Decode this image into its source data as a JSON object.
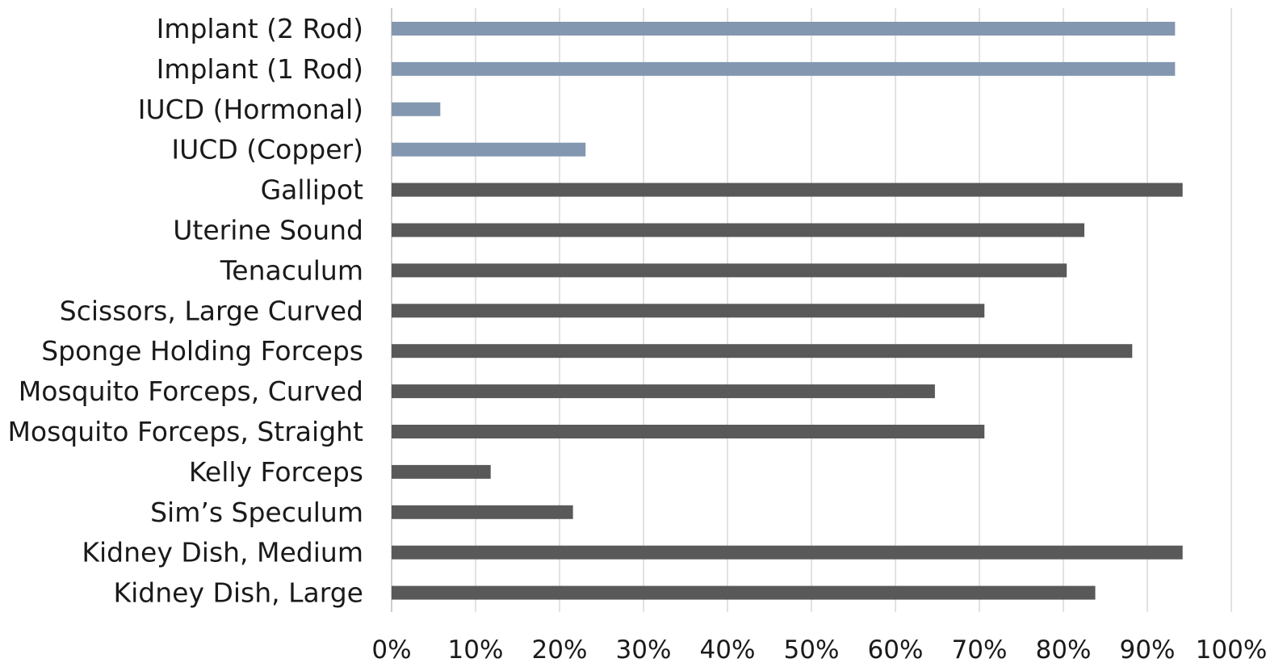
{
  "chart_data": {
    "type": "bar",
    "orientation": "horizontal",
    "title": "",
    "xlabel": "",
    "ylabel": "",
    "xlim": [
      0,
      100
    ],
    "x_ticks": [
      "0%",
      "10%",
      "20%",
      "30%",
      "40%",
      "50%",
      "60%",
      "70%",
      "80%",
      "90%",
      "100%"
    ],
    "x_tick_values": [
      0,
      10,
      20,
      30,
      40,
      50,
      60,
      70,
      80,
      90,
      100
    ],
    "grid": true,
    "legend": "none",
    "categories": [
      "Implant (2 Rod)",
      "Implant (1 Rod)",
      "IUCD (Hormonal)",
      "IUCD (Copper)",
      "Gallipot",
      "Uterine Sound",
      "Tenaculum",
      "Scissors, Large Curved",
      "Sponge Holding Forceps",
      "Mosquito Forceps, Curved",
      "Mosquito Forceps, Straight",
      "Kelly Forceps",
      "Sim’s Speculum",
      "Kidney Dish, Medium",
      "Kidney Dish, Large"
    ],
    "values": [
      93.3,
      93.3,
      5.8,
      23.1,
      94.2,
      82.5,
      80.4,
      70.6,
      88.2,
      64.7,
      70.6,
      11.8,
      21.6,
      94.2,
      83.8
    ],
    "bar_colors": [
      "#8497b0",
      "#8497b0",
      "#8497b0",
      "#8497b0",
      "#595959",
      "#595959",
      "#595959",
      "#595959",
      "#595959",
      "#595959",
      "#595959",
      "#595959",
      "#595959",
      "#595959",
      "#595959"
    ]
  }
}
